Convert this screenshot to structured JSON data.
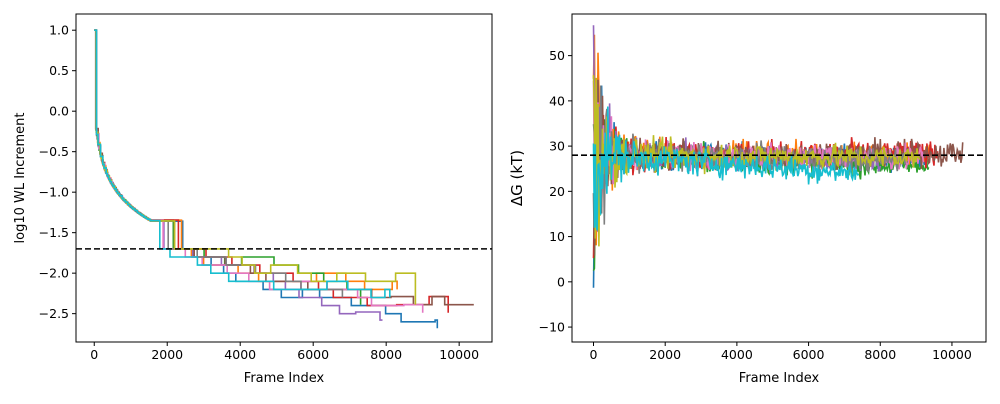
{
  "chart_data": [
    {
      "type": "line",
      "title": "",
      "xlabel": "Frame Index",
      "ylabel": "log10 WL Increment",
      "xlim": [
        -500,
        10900
      ],
      "ylim": [
        -2.85,
        1.2
      ],
      "xticks": [
        0,
        2000,
        4000,
        6000,
        8000,
        10000
      ],
      "xtick_labels": [
        "0",
        "2000",
        "4000",
        "6000",
        "8000",
        "10000"
      ],
      "yticks": [
        1.0,
        0.5,
        0.0,
        -0.5,
        -1.0,
        -1.5,
        -2.0,
        -2.5
      ],
      "ytick_labels": [
        "1.0",
        "0.5",
        "0.0",
        "−0.5",
        "−1.0",
        "−1.5",
        "−2.0",
        "−2.5"
      ],
      "reference_line": {
        "y": -1.7,
        "style": "dashed",
        "color": "#000000"
      },
      "grid": false,
      "legend": "none",
      "series": [
        {
          "color": "#1f77b4",
          "end_x": 9400,
          "final": -2.68
        },
        {
          "color": "#ff7f0e",
          "end_x": 8300,
          "final": -2.2
        },
        {
          "color": "#2ca02c",
          "end_x": 7300,
          "final": -2.39
        },
        {
          "color": "#d62728",
          "end_x": 9700,
          "final": -2.49
        },
        {
          "color": "#9467bd",
          "end_x": 7900,
          "final": -2.58
        },
        {
          "color": "#8c564b",
          "end_x": 10400,
          "final": -2.39
        },
        {
          "color": "#e377c2",
          "end_x": 9000,
          "final": -2.49
        },
        {
          "color": "#7f7f7f",
          "end_x": 6800,
          "final": -2.3
        },
        {
          "color": "#bcbd22",
          "end_x": 8800,
          "final": -2.39
        },
        {
          "color": "#17becf",
          "end_x": 8100,
          "final": -2.3
        }
      ]
    },
    {
      "type": "line",
      "title": "",
      "xlabel": "Frame Index",
      "ylabel": "ΔG (kT)",
      "xlim": [
        -600,
        10950
      ],
      "ylim": [
        -13.3,
        59.2
      ],
      "xticks": [
        0,
        2000,
        4000,
        6000,
        8000,
        10000
      ],
      "xtick_labels": [
        "0",
        "2000",
        "4000",
        "6000",
        "8000",
        "10000"
      ],
      "yticks": [
        50,
        40,
        30,
        20,
        10,
        0,
        -10
      ],
      "ytick_labels": [
        "50",
        "40",
        "30",
        "20",
        "10",
        "0",
        "−10"
      ],
      "reference_line": {
        "y": 28,
        "style": "dashed",
        "color": "#000000"
      },
      "grid": false,
      "legend": "none",
      "series": [
        {
          "color": "#1f77b4",
          "end_x": 9300,
          "final": 27.0
        },
        {
          "color": "#ff7f0e",
          "end_x": 9400,
          "final": 28.0
        },
        {
          "color": "#2ca02c",
          "end_x": 9350,
          "final": 25.5
        },
        {
          "color": "#d62728",
          "end_x": 9600,
          "final": 28.5
        },
        {
          "color": "#9467bd",
          "end_x": 8000,
          "final": 26.5
        },
        {
          "color": "#8c564b",
          "end_x": 10300,
          "final": 28.5
        },
        {
          "color": "#e377c2",
          "end_x": 9200,
          "final": 27.5
        },
        {
          "color": "#7f7f7f",
          "end_x": 8700,
          "final": 27.0
        },
        {
          "color": "#bcbd22",
          "end_x": 9100,
          "final": 27.5
        },
        {
          "color": "#17becf",
          "end_x": 7400,
          "final": 24.0
        }
      ]
    }
  ]
}
